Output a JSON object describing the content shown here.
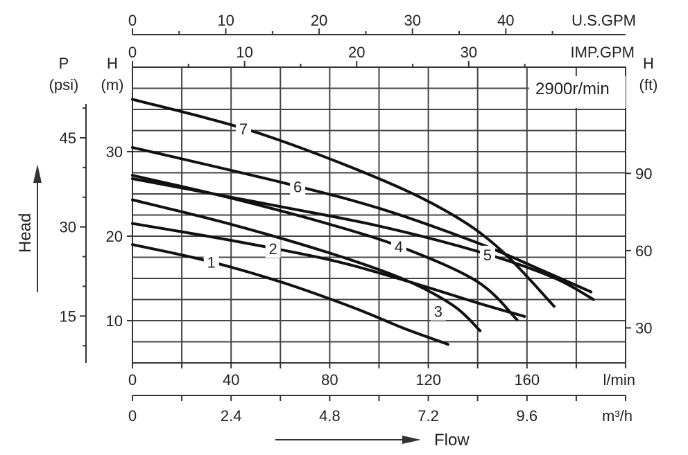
{
  "chart_data": {
    "type": "line",
    "speed_label": "2900r/min",
    "flow_label": "Flow",
    "head_label": "Head",
    "y_left_m": {
      "label_top": "H",
      "label_unit": "(m)",
      "ticks": [
        10,
        20,
        30
      ]
    },
    "y_left_psi": {
      "label_top": "P",
      "label_unit": "(psi)",
      "ticks": [
        15,
        30,
        45
      ]
    },
    "y_right_ft": {
      "label_top": "H",
      "label_unit": "(ft)",
      "ticks": [
        30,
        60,
        90
      ]
    },
    "x_lmin": {
      "unit": "l/min",
      "ticks": [
        0,
        40,
        80,
        120,
        160
      ],
      "range": [
        0,
        200
      ]
    },
    "x_m3h": {
      "unit": "m³/h",
      "ticks": [
        "0",
        "2.4",
        "4.8",
        "7.2",
        "9.6"
      ]
    },
    "x_usgpm": {
      "unit": "U.S.GPM",
      "ticks": [
        0,
        10,
        20,
        30,
        40
      ]
    },
    "x_impgpm": {
      "unit": "IMP.GPM",
      "ticks": [
        0,
        10,
        20,
        30
      ]
    },
    "ylim_m": [
      5,
      40
    ],
    "series": [
      {
        "name": "1",
        "x": [
          0,
          30,
          60,
          90,
          110,
          128
        ],
        "y": [
          19,
          17.1,
          14.6,
          11.5,
          9.1,
          7.2
        ]
      },
      {
        "name": "2",
        "x": [
          0,
          40,
          80,
          110,
          140,
          159
        ],
        "y": [
          21.5,
          19.5,
          17.2,
          14.8,
          12.1,
          10.5
        ]
      },
      {
        "name": "3",
        "x": [
          0,
          40,
          80,
          110,
          130,
          141
        ],
        "y": [
          24.3,
          21.4,
          18,
          14.9,
          11.8,
          8.8
        ]
      },
      {
        "name": "4",
        "x": [
          0,
          40,
          80,
          110,
          140,
          156
        ],
        "y": [
          27.2,
          24.5,
          21.4,
          18.6,
          14.6,
          10.1
        ]
      },
      {
        "name": "5",
        "x": [
          0,
          60,
          100,
          140,
          170,
          187
        ],
        "y": [
          26.8,
          23.5,
          21.2,
          18.2,
          15.2,
          12.5
        ]
      },
      {
        "name": "6",
        "x": [
          0,
          60,
          100,
          140,
          165,
          186
        ],
        "y": [
          30.5,
          26.4,
          23.3,
          19.2,
          16.1,
          13.4
        ]
      },
      {
        "name": "7",
        "x": [
          0,
          50,
          100,
          130,
          150,
          171
        ],
        "y": [
          36.2,
          32.3,
          26.8,
          22.5,
          18.2,
          11.7
        ]
      }
    ]
  }
}
